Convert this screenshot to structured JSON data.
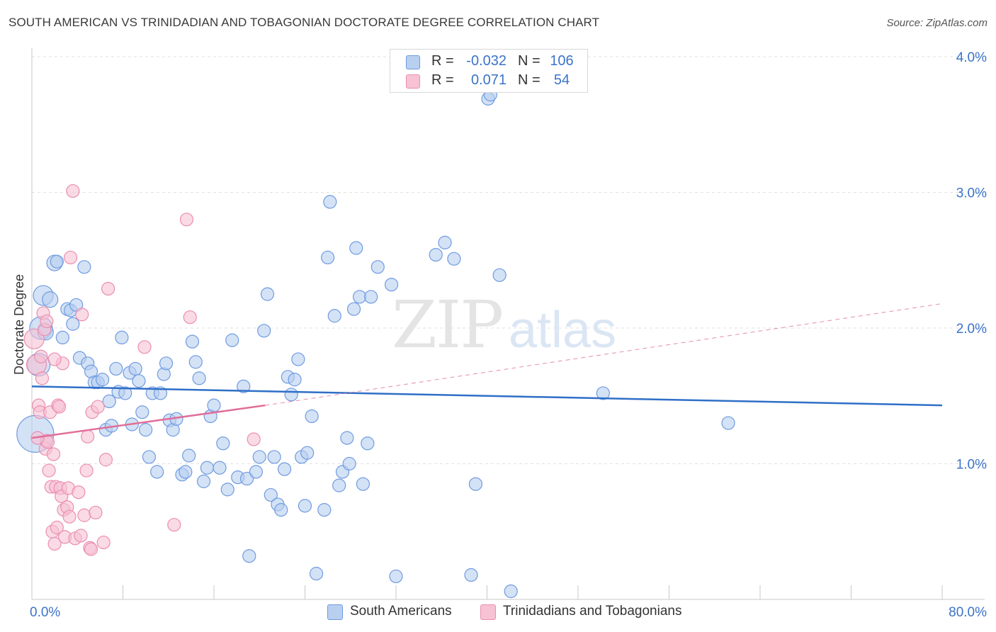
{
  "title": "SOUTH AMERICAN VS TRINIDADIAN AND TOBAGONIAN DOCTORATE DEGREE CORRELATION CHART",
  "source": "Source: ZipAtlas.com",
  "colors": {
    "blue_fill": "#b8cff0",
    "blue_stroke": "#6f9be0",
    "blue_line": "#2f6fc7",
    "pink_fill": "#f7c2d4",
    "pink_stroke": "#ea8fb0",
    "pink_line": "#e0709a",
    "tick_label": "#3b73c8",
    "grid": "#e2e2e2"
  },
  "legend": {
    "rows": [
      {
        "series": "South Americans",
        "r_label": "R =",
        "r_value": "-0.032",
        "n_label": "N =",
        "n_value": "106"
      },
      {
        "series": "Trinidadians and Tobagonians",
        "r_label": "R =",
        "r_value": "0.071",
        "n_label": "N =",
        "n_value": "54"
      }
    ]
  },
  "bottom_legend": [
    "South Americans",
    "Trinidadians and Tobagonians"
  ],
  "chart_data": {
    "type": "scatter",
    "title": "SOUTH AMERICAN VS TRINIDADIAN AND TOBAGONIAN DOCTORATE DEGREE CORRELATION CHART",
    "xlabel": "",
    "ylabel": "Doctorate Degree",
    "xlim": [
      0,
      80
    ],
    "ylim": [
      0,
      4.0
    ],
    "x_tick_labels": [
      "0.0%",
      "80.0%"
    ],
    "y_ticks": [
      1.0,
      2.0,
      3.0,
      4.0
    ],
    "y_tick_labels": [
      "1.0%",
      "2.0%",
      "3.0%",
      "4.0%"
    ],
    "grid": true,
    "series": [
      {
        "name": "South Americans",
        "r": -0.032,
        "n": 106,
        "trend": {
          "x": [
            0,
            80
          ],
          "y": [
            1.57,
            1.43
          ]
        },
        "points": [
          [
            0.3,
            1.22,
            26
          ],
          [
            0.6,
            1.73,
            16
          ],
          [
            0.8,
            2.0,
            16
          ],
          [
            1.0,
            2.24,
            14
          ],
          [
            1.2,
            1.97,
            11
          ],
          [
            1.6,
            2.21,
            11
          ],
          [
            2.0,
            2.48,
            11
          ],
          [
            2.2,
            2.49,
            9
          ],
          [
            2.7,
            1.93,
            9
          ],
          [
            3.1,
            2.14,
            9
          ],
          [
            3.4,
            2.13,
            9
          ],
          [
            3.6,
            2.03,
            9
          ],
          [
            3.9,
            2.17,
            9
          ],
          [
            4.2,
            1.78,
            9
          ],
          [
            4.6,
            2.45,
            9
          ],
          [
            4.9,
            1.74,
            9
          ],
          [
            5.2,
            1.68,
            9
          ],
          [
            5.5,
            1.6,
            9
          ],
          [
            5.8,
            1.6,
            9
          ],
          [
            6.2,
            1.62,
            9
          ],
          [
            6.5,
            1.25,
            9
          ],
          [
            6.8,
            1.46,
            9
          ],
          [
            7.0,
            1.28,
            9
          ],
          [
            7.4,
            1.7,
            9
          ],
          [
            7.6,
            1.53,
            9
          ],
          [
            7.9,
            1.93,
            9
          ],
          [
            8.2,
            1.52,
            9
          ],
          [
            8.6,
            1.67,
            9
          ],
          [
            8.8,
            1.29,
            9
          ],
          [
            9.1,
            1.7,
            9
          ],
          [
            9.4,
            1.61,
            9
          ],
          [
            9.7,
            1.38,
            9
          ],
          [
            10.0,
            1.25,
            9
          ],
          [
            10.3,
            1.05,
            9
          ],
          [
            10.6,
            1.52,
            9
          ],
          [
            11.0,
            0.94,
            9
          ],
          [
            11.3,
            1.52,
            9
          ],
          [
            11.6,
            1.66,
            9
          ],
          [
            11.8,
            1.74,
            9
          ],
          [
            12.1,
            1.32,
            9
          ],
          [
            12.4,
            1.25,
            9
          ],
          [
            12.7,
            1.33,
            9
          ],
          [
            13.2,
            0.92,
            9
          ],
          [
            13.5,
            0.94,
            9
          ],
          [
            13.8,
            1.06,
            9
          ],
          [
            14.1,
            1.9,
            9
          ],
          [
            14.4,
            1.75,
            9
          ],
          [
            14.7,
            1.63,
            9
          ],
          [
            15.1,
            0.87,
            9
          ],
          [
            15.4,
            0.97,
            9
          ],
          [
            15.7,
            1.35,
            9
          ],
          [
            16.0,
            1.43,
            9
          ],
          [
            16.5,
            0.97,
            9
          ],
          [
            16.8,
            1.15,
            9
          ],
          [
            17.2,
            0.81,
            9
          ],
          [
            17.6,
            1.91,
            9
          ],
          [
            18.1,
            0.9,
            9
          ],
          [
            18.6,
            1.57,
            9
          ],
          [
            18.9,
            0.89,
            9
          ],
          [
            19.1,
            0.32,
            9
          ],
          [
            19.7,
            0.94,
            9
          ],
          [
            20.0,
            1.05,
            9
          ],
          [
            20.4,
            1.98,
            9
          ],
          [
            20.7,
            2.25,
            9
          ],
          [
            21.0,
            0.77,
            9
          ],
          [
            21.3,
            1.05,
            9
          ],
          [
            21.6,
            0.7,
            9
          ],
          [
            21.9,
            0.66,
            9
          ],
          [
            22.2,
            0.96,
            9
          ],
          [
            22.5,
            1.64,
            9
          ],
          [
            22.8,
            1.51,
            9
          ],
          [
            23.1,
            1.62,
            9
          ],
          [
            23.4,
            1.77,
            9
          ],
          [
            23.7,
            1.05,
            9
          ],
          [
            24.0,
            0.69,
            9
          ],
          [
            24.2,
            1.08,
            9
          ],
          [
            24.6,
            1.35,
            9
          ],
          [
            25.0,
            0.19,
            9
          ],
          [
            25.7,
            0.66,
            9
          ],
          [
            26.0,
            2.52,
            9
          ],
          [
            26.2,
            2.93,
            9
          ],
          [
            26.6,
            2.09,
            9
          ],
          [
            27.0,
            0.84,
            9
          ],
          [
            27.3,
            0.94,
            9
          ],
          [
            27.7,
            1.19,
            9
          ],
          [
            27.9,
            1.0,
            9
          ],
          [
            28.3,
            2.14,
            9
          ],
          [
            28.5,
            2.59,
            9
          ],
          [
            28.8,
            2.23,
            9
          ],
          [
            29.1,
            0.85,
            9
          ],
          [
            29.5,
            1.15,
            9
          ],
          [
            29.8,
            2.23,
            9
          ],
          [
            30.4,
            2.45,
            9
          ],
          [
            31.6,
            2.32,
            9
          ],
          [
            32.0,
            0.17,
            9
          ],
          [
            35.5,
            2.54,
            9
          ],
          [
            36.3,
            2.63,
            9
          ],
          [
            37.1,
            2.51,
            9
          ],
          [
            38.6,
            0.18,
            9
          ],
          [
            39.0,
            0.85,
            9
          ],
          [
            40.1,
            3.69,
            9
          ],
          [
            40.3,
            3.72,
            9
          ],
          [
            41.1,
            2.39,
            9
          ],
          [
            42.1,
            0.06,
            9
          ],
          [
            50.2,
            1.52,
            9
          ],
          [
            61.2,
            1.3,
            9
          ]
        ]
      },
      {
        "name": "Trinidadians and Tobagonians",
        "r": 0.071,
        "n": 54,
        "trend": {
          "x": [
            0,
            20.5
          ],
          "y": [
            1.19,
            1.43
          ]
        },
        "trend_extension": {
          "x": [
            20.5,
            80
          ],
          "y": [
            1.43,
            2.18
          ]
        },
        "points": [
          [
            0.2,
            1.92,
            14
          ],
          [
            0.4,
            1.73,
            14
          ],
          [
            0.6,
            1.43,
            9
          ],
          [
            0.7,
            1.38,
            9
          ],
          [
            0.8,
            1.79,
            9
          ],
          [
            0.9,
            1.63,
            9
          ],
          [
            1.0,
            2.11,
            9
          ],
          [
            1.1,
            1.99,
            9
          ],
          [
            1.2,
            1.11,
            9
          ],
          [
            1.3,
            1.17,
            9
          ],
          [
            1.4,
            1.16,
            9
          ],
          [
            1.5,
            0.95,
            9
          ],
          [
            1.6,
            1.38,
            9
          ],
          [
            1.7,
            0.83,
            9
          ],
          [
            1.8,
            0.5,
            9
          ],
          [
            1.9,
            1.07,
            9
          ],
          [
            2.0,
            0.41,
            9
          ],
          [
            2.1,
            0.83,
            9
          ],
          [
            2.2,
            0.53,
            9
          ],
          [
            2.3,
            1.43,
            9
          ],
          [
            2.4,
            1.42,
            9
          ],
          [
            2.5,
            0.82,
            9
          ],
          [
            2.6,
            0.76,
            9
          ],
          [
            2.7,
            1.74,
            9
          ],
          [
            2.8,
            0.66,
            9
          ],
          [
            2.9,
            0.46,
            9
          ],
          [
            3.1,
            0.68,
            9
          ],
          [
            3.2,
            0.82,
            9
          ],
          [
            3.3,
            0.61,
            9
          ],
          [
            3.4,
            2.52,
            9
          ],
          [
            3.6,
            3.01,
            9
          ],
          [
            3.8,
            0.45,
            9
          ],
          [
            4.1,
            0.79,
            9
          ],
          [
            4.3,
            0.47,
            9
          ],
          [
            4.4,
            2.1,
            9
          ],
          [
            4.6,
            0.62,
            9
          ],
          [
            4.8,
            0.95,
            9
          ],
          [
            4.9,
            1.2,
            9
          ],
          [
            5.1,
            0.38,
            9
          ],
          [
            5.2,
            0.37,
            9
          ],
          [
            5.3,
            1.38,
            9
          ],
          [
            5.6,
            0.64,
            9
          ],
          [
            5.8,
            1.42,
            9
          ],
          [
            6.3,
            0.42,
            9
          ],
          [
            6.5,
            1.03,
            9
          ],
          [
            6.7,
            2.29,
            9
          ],
          [
            9.9,
            1.86,
            9
          ],
          [
            12.5,
            0.55,
            9
          ],
          [
            13.6,
            2.8,
            9
          ],
          [
            13.9,
            2.08,
            9
          ],
          [
            19.5,
            1.18,
            9
          ],
          [
            0.5,
            1.19,
            9
          ],
          [
            1.3,
            2.05,
            9
          ],
          [
            2.0,
            1.77,
            9
          ]
        ]
      }
    ]
  }
}
